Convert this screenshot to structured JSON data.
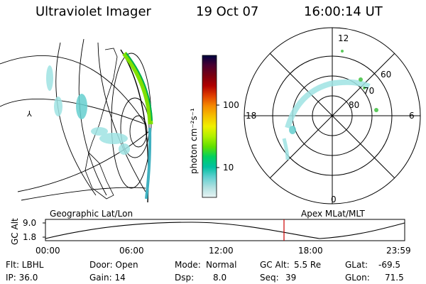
{
  "header": {
    "title": "Ultraviolet Imager",
    "date": "19 Oct 07",
    "time": "16:00:14 UT"
  },
  "colorbar": {
    "label": "photon cm⁻²s⁻¹",
    "ticks": [
      "100",
      "10"
    ],
    "colors": [
      "#000040",
      "#4a0030",
      "#7a0010",
      "#b00000",
      "#e04000",
      "#f58a00",
      "#f5c000",
      "#f0f000",
      "#b0f000",
      "#60e000",
      "#00d060",
      "#00c0a0",
      "#60d0d0",
      "#b0e0e0",
      "#e8f4f4"
    ]
  },
  "polar": {
    "top_label": "12",
    "left_label": "18",
    "right_label": "6",
    "bottom_label": "0",
    "ring_labels": [
      "60",
      "70",
      "80"
    ]
  },
  "strip": {
    "left_caption": "Geographic Lat/Lon",
    "right_caption": "Apex MLat/MLT",
    "ylabel": "GC Alt",
    "yticks": [
      "9.0",
      "1.8"
    ],
    "xticks": [
      "00:00",
      "06:00",
      "12:00",
      "18:00",
      "23:59"
    ],
    "marker_color": "#cc0000"
  },
  "info": {
    "row1": {
      "flt": "Flt: LBHL",
      "door": "Door: Open",
      "mode_label": "Mode:",
      "mode_value": "Normal",
      "gcalt_label": "GC Alt:",
      "gcalt_value": "5.5 Re",
      "glat_label": "GLat:",
      "glat_value": "-69.5"
    },
    "row2": {
      "ip": "IP: 36.0",
      "gain": "Gain: 14",
      "dsp_label": "Dsp:",
      "dsp_value": "8.0",
      "seq_label": "Seq:",
      "seq_value": "39",
      "glon_label": "GLon:",
      "glon_value": "71.5"
    }
  }
}
